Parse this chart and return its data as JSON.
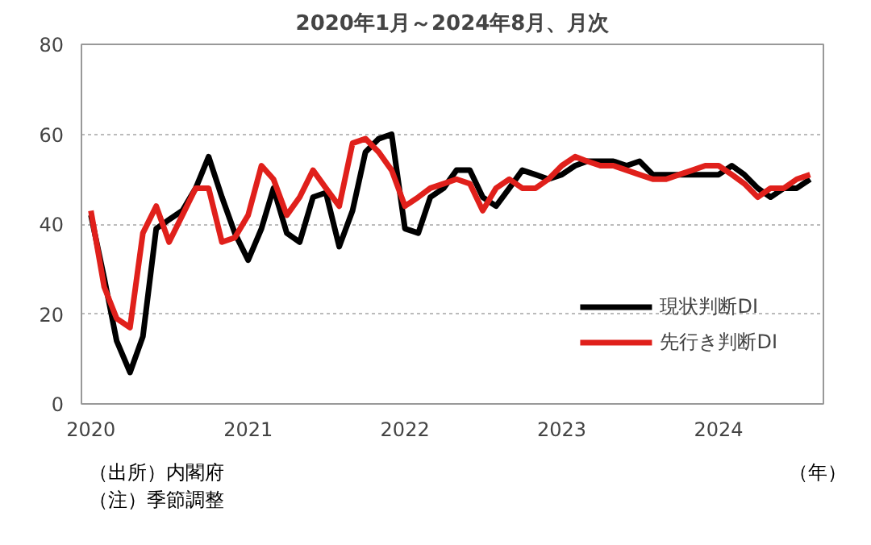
{
  "chart_data": {
    "type": "line",
    "title": "2020年1月～2024年8月、月次",
    "xlabel": "（年）",
    "annotations": [
      "（出所）内閣府",
      "（注）季節調整"
    ],
    "x": [
      "2020-01",
      "2020-02",
      "2020-03",
      "2020-04",
      "2020-05",
      "2020-06",
      "2020-07",
      "2020-08",
      "2020-09",
      "2020-10",
      "2020-11",
      "2020-12",
      "2021-01",
      "2021-02",
      "2021-03",
      "2021-04",
      "2021-05",
      "2021-06",
      "2021-07",
      "2021-08",
      "2021-09",
      "2021-10",
      "2021-11",
      "2021-12",
      "2022-01",
      "2022-02",
      "2022-03",
      "2022-04",
      "2022-05",
      "2022-06",
      "2022-07",
      "2022-08",
      "2022-09",
      "2022-10",
      "2022-11",
      "2022-12",
      "2023-01",
      "2023-02",
      "2023-03",
      "2023-04",
      "2023-05",
      "2023-06",
      "2023-07",
      "2023-08",
      "2023-09",
      "2023-10",
      "2023-11",
      "2023-12",
      "2024-01",
      "2024-02",
      "2024-03",
      "2024-04",
      "2024-05",
      "2024-06",
      "2024-07",
      "2024-08"
    ],
    "series": [
      {
        "name": "現状判断DI",
        "color": "#000000",
        "values": [
          42,
          28,
          14,
          7,
          15,
          39,
          41,
          43,
          48,
          55,
          46,
          38,
          32,
          39,
          48,
          38,
          36,
          46,
          47,
          35,
          43,
          56,
          59,
          60,
          39,
          38,
          46,
          48,
          52,
          52,
          46,
          44,
          48,
          52,
          51,
          50,
          51,
          53,
          54,
          54,
          54,
          53,
          54,
          51,
          51,
          51,
          51,
          51,
          51,
          53,
          51,
          48,
          46,
          48,
          48,
          50
        ]
      },
      {
        "name": "先行き判断DI",
        "color": "#e0201b",
        "values": [
          43,
          26,
          19,
          17,
          38,
          44,
          36,
          42,
          48,
          48,
          36,
          37,
          42,
          53,
          50,
          42,
          46,
          52,
          48,
          44,
          58,
          59,
          56,
          52,
          44,
          46,
          48,
          49,
          50,
          49,
          43,
          48,
          50,
          48,
          48,
          50,
          53,
          55,
          54,
          53,
          53,
          52,
          51,
          50,
          50,
          51,
          52,
          53,
          53,
          51,
          49,
          46,
          48,
          48,
          50,
          51
        ]
      }
    ],
    "ylim": [
      0,
      80
    ],
    "yticks": [
      0,
      20,
      40,
      60,
      80
    ],
    "xlim": [
      "2019-12-10",
      "2024-09-01"
    ],
    "xticks": [
      {
        "value": "2020-01",
        "label": "2020"
      },
      {
        "value": "2021-01",
        "label": "2021"
      },
      {
        "value": "2022-01",
        "label": "2022"
      },
      {
        "value": "2023-01",
        "label": "2023"
      },
      {
        "value": "2024-01",
        "label": "2024"
      }
    ],
    "grid": "y",
    "legend": "bottom right",
    "line_style": "solid",
    "marker": "none"
  }
}
